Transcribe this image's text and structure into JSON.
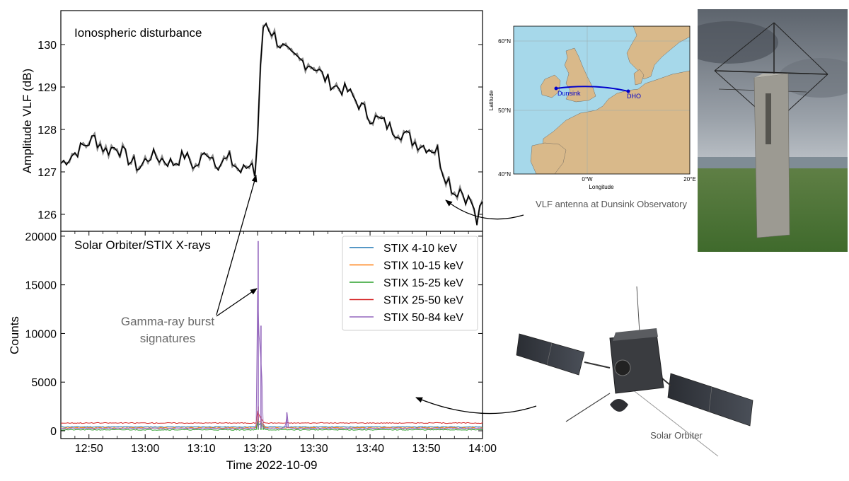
{
  "chart_data": [
    {
      "type": "line",
      "title": "Ionospheric disturbance",
      "xlabel": "",
      "ylabel": "Amplitude VLF (dB)",
      "xlim": [
        "12:45",
        "14:00"
      ],
      "ylim": [
        125.6,
        130.8
      ],
      "yticks": [
        126,
        127,
        128,
        129,
        130
      ],
      "grid": false,
      "series": [
        {
          "color": "#000000",
          "x": [
            "12:45",
            "12:47",
            "12:49",
            "12:51",
            "12:53",
            "12:55",
            "12:57",
            "12:59",
            "13:01",
            "13:03",
            "13:05",
            "13:07",
            "13:09",
            "13:11",
            "13:13",
            "13:15",
            "13:17",
            "13:19",
            "13:19.5",
            "13:20",
            "13:20.5",
            "13:21",
            "13:21.5",
            "13:22",
            "13:23",
            "13:24",
            "13:26",
            "13:28",
            "13:30",
            "13:32",
            "13:34",
            "13:36",
            "13:38",
            "13:40",
            "13:42",
            "13:44",
            "13:46",
            "13:48",
            "13:50",
            "13:52",
            "13:53",
            "13:54",
            "13:55",
            "13:56",
            "13:57",
            "13:58",
            "13:59",
            "14:00"
          ],
          "values": [
            127.2,
            127.4,
            127.6,
            127.8,
            127.5,
            127.6,
            127.3,
            127.1,
            127.4,
            127.3,
            127.2,
            127.4,
            127.1,
            127.5,
            127.2,
            127.3,
            127.0,
            127.2,
            126.9,
            127.8,
            129.5,
            130.4,
            130.5,
            130.4,
            130.2,
            130.0,
            129.7,
            129.6,
            129.5,
            129.2,
            129.0,
            128.9,
            128.6,
            128.3,
            128.2,
            128.0,
            127.9,
            127.7,
            127.6,
            127.5,
            127.0,
            126.8,
            126.5,
            126.6,
            126.4,
            126.3,
            125.8,
            126.3
          ]
        }
      ]
    },
    {
      "type": "line",
      "title": "Solar Orbiter/STIX X-rays",
      "xlabel": "Time 2022-10-09",
      "ylabel": "Counts",
      "xlim": [
        "12:45",
        "14:00"
      ],
      "ylim": [
        -800,
        20500
      ],
      "yticks": [
        0,
        5000,
        10000,
        15000,
        20000
      ],
      "xticks": [
        "12:50",
        "13:00",
        "13:10",
        "13:20",
        "13:30",
        "13:40",
        "13:50",
        "14:00"
      ],
      "grid": false,
      "legend": "top-right",
      "series": [
        {
          "name": "STIX 4-10 keV",
          "color": "#1f77b4",
          "baseline": 400,
          "x": [
            "13:20.1",
            "13:20.6",
            "13:21"
          ],
          "values": [
            800,
            900,
            700
          ]
        },
        {
          "name": "STIX 10-15 keV",
          "color": "#ff7f0e",
          "baseline": 300,
          "x": [
            "13:20.1",
            "13:20.6",
            "13:21"
          ],
          "values": [
            1500,
            1200,
            700
          ]
        },
        {
          "name": "STIX 15-25 keV",
          "color": "#2ca02c",
          "baseline": 100,
          "x": [
            "13:20.1",
            "13:20.6",
            "13:21"
          ],
          "values": [
            1200,
            900,
            500
          ]
        },
        {
          "name": "STIX 25-50 keV",
          "color": "#d62728",
          "baseline": 800,
          "x": [
            "13:20.1",
            "13:20.6",
            "13:21"
          ],
          "values": [
            2500,
            1500,
            900
          ]
        },
        {
          "name": "STIX 50-84 keV",
          "color": "#9467bd",
          "baseline": 250,
          "x": [
            "13:20.1",
            "13:20.6",
            "13:25.2"
          ],
          "values": [
            19500,
            10800,
            1900
          ]
        }
      ]
    }
  ],
  "annotations": {
    "gamma_label_line1": "Gamma-ray burst",
    "gamma_label_line2": "signatures",
    "vlf_caption": "VLF antenna at Dunsink Observatory",
    "solo_caption": "Solar Orbiter"
  },
  "map": {
    "xlabel": "Longitude",
    "ylabel": "Latitude",
    "lat_ticks": [
      "60°N",
      "50°N",
      "40°N"
    ],
    "lon_ticks": [
      "0°W",
      "20°E"
    ],
    "stations": [
      "Dunsink",
      "DHO"
    ],
    "ocean_color": "#a6d8ea",
    "land_color": "#d9b98a",
    "path_color": "#0000cc"
  }
}
